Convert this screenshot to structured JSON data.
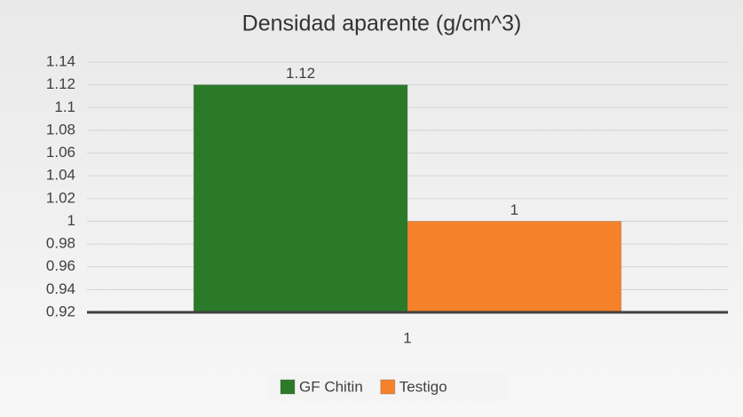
{
  "chart_data": {
    "type": "bar",
    "title": "Densidad aparente (g/cm^3)",
    "categories": [
      "1"
    ],
    "series": [
      {
        "name": "GF Chitin",
        "color": "#2a7a2a",
        "values": [
          1.12
        ]
      },
      {
        "name": "Testigo",
        "color": "#f5822a",
        "values": [
          1
        ]
      }
    ],
    "ylim": [
      0.92,
      1.14
    ],
    "yticks": [
      0.92,
      0.94,
      0.96,
      0.98,
      1,
      1.02,
      1.04,
      1.06,
      1.08,
      1.1,
      1.12,
      1.14
    ],
    "grid": true,
    "legend": "bottom"
  }
}
